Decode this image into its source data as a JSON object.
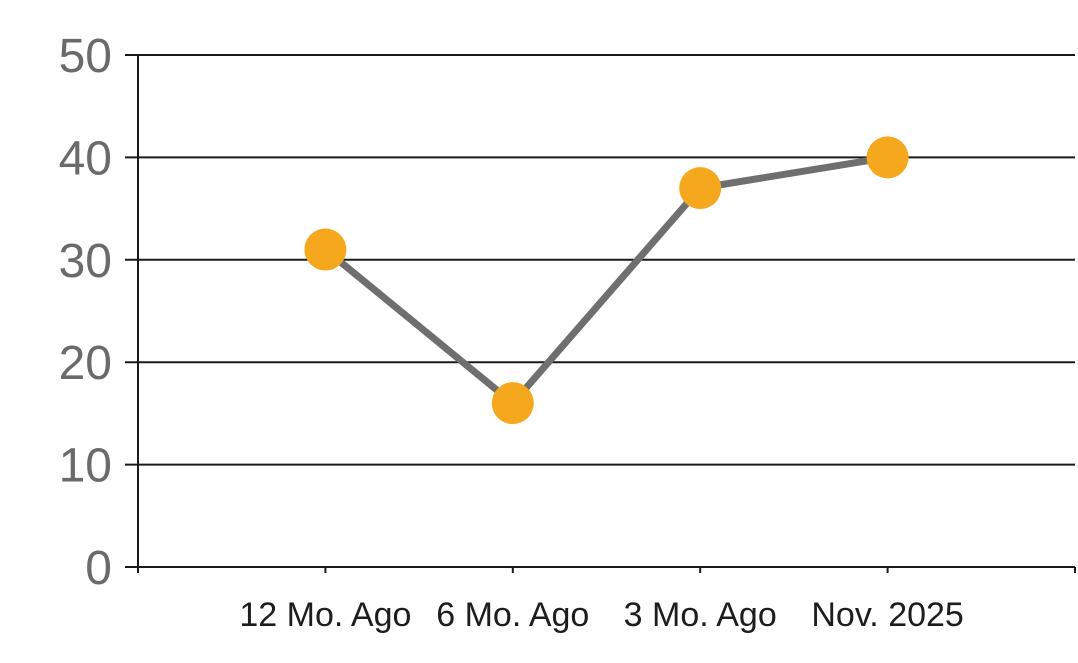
{
  "chart_data": {
    "type": "line",
    "title": "",
    "categories": [
      "12 Mo. Ago",
      "6 Mo. Ago",
      "3 Mo. Ago",
      "Nov. 2025"
    ],
    "values": [
      31,
      16,
      37,
      40
    ],
    "xlabel": "",
    "ylabel": "",
    "ylim": [
      0,
      50
    ],
    "y_ticks": [
      0,
      10,
      20,
      30,
      40,
      50
    ],
    "y_tick_labels": [
      "0",
      "10",
      "20",
      "30",
      "40",
      "50"
    ],
    "grid": true,
    "legend": false,
    "marker": "circle",
    "colors": {
      "marker": "#F5A81E",
      "line": "#6F6F6F",
      "grid": "#1A1A1A",
      "axis": "#1A1A1A",
      "y_tick_label": "#6A6A6A",
      "x_tick_label": "#1D1D1D",
      "background": "#FFFFFF"
    }
  }
}
